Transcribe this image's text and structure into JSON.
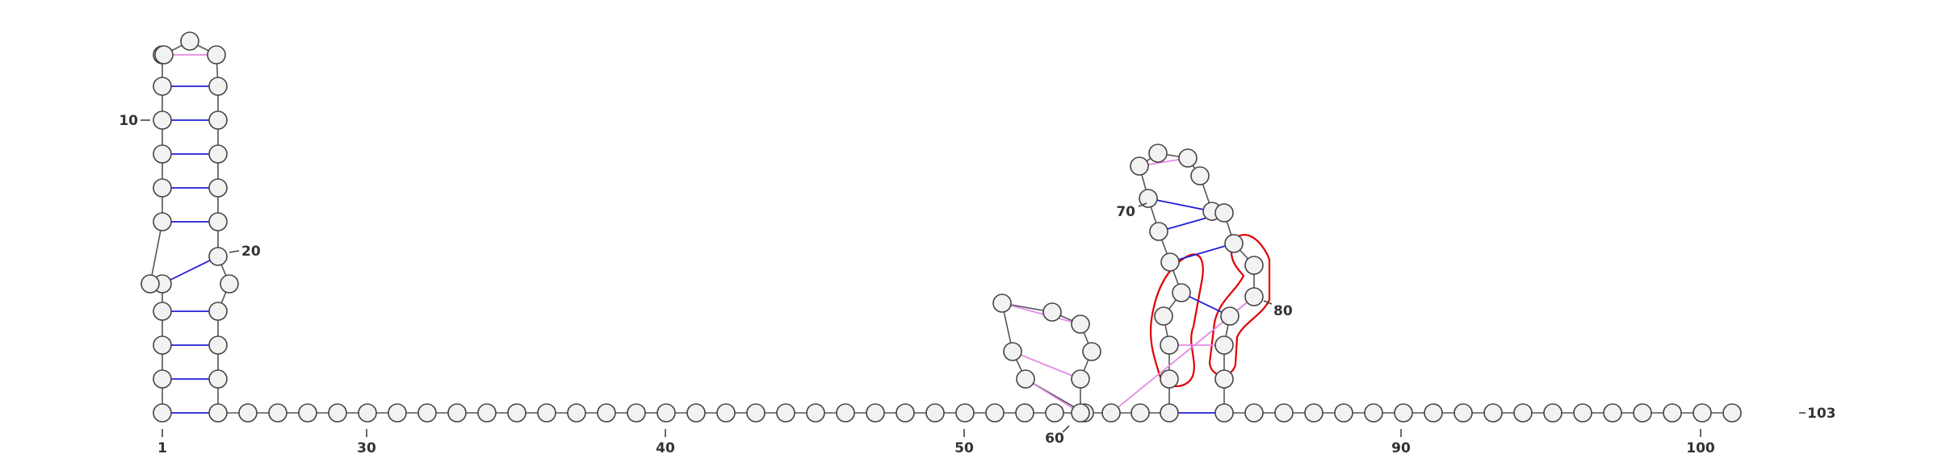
{
  "diagram": {
    "type": "rna-secondary-structure",
    "nucleotide_count": 103,
    "labels": {
      "n1": "1",
      "n10": "10",
      "n20": "20",
      "n30": "30",
      "n40": "40",
      "n50": "50",
      "n60": "60",
      "n70": "70",
      "n80": "80",
      "n90": "90",
      "n100": "100",
      "n103": "103"
    },
    "colors": {
      "canonical_pair": "#1f1fd6",
      "noncanonical_pair": "#e58be5",
      "highlight": "#e00000",
      "nucleotide_fill": "#f2f2f2",
      "nucleotide_stroke": "#444444"
    }
  }
}
